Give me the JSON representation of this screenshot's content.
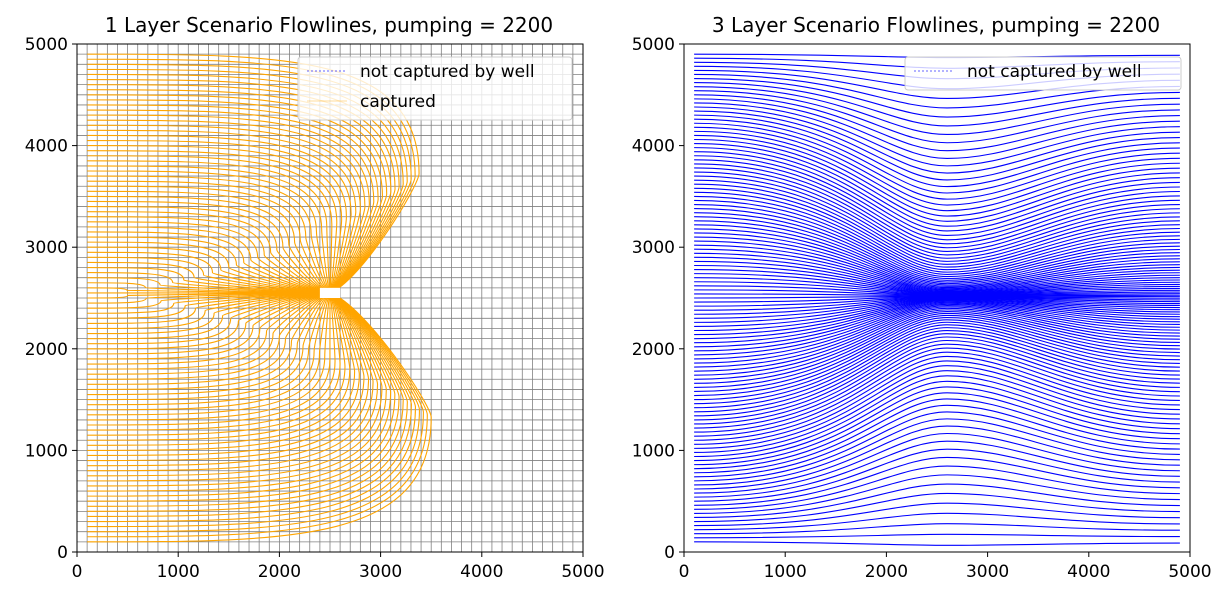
{
  "colors": {
    "captured": "#FFA500",
    "not_captured": "#0000FF",
    "grid": "#808080",
    "axis": "#000000",
    "background": "#FFFFFF"
  },
  "chart_data": [
    {
      "type": "line",
      "title": "1 Layer Scenario Flowlines, pumping = 2200",
      "xlim": [
        0,
        5000
      ],
      "ylim": [
        0,
        5000
      ],
      "x_ticks": [
        "0",
        "1000",
        "2000",
        "3000",
        "4000",
        "5000"
      ],
      "y_ticks": [
        "0",
        "1000",
        "2000",
        "3000",
        "4000",
        "5000"
      ],
      "model_grid": "on",
      "legend_location": "upper right",
      "legend": [
        "not captured by well",
        "captured"
      ],
      "series": [
        {
          "name": "not captured by well",
          "color": "#0000FF",
          "style": "dotted",
          "values": []
        },
        {
          "name": "captured",
          "color": "#FFA500",
          "style": "solid",
          "start_x": 100,
          "start_y_range": [
            100,
            4900
          ],
          "well": [
            2500,
            2550
          ],
          "max_x_lower_lobe": 3500,
          "max_x_upper_lobe": 3380
        }
      ]
    },
    {
      "type": "line",
      "title": "3 Layer Scenario Flowlines, pumping = 2200",
      "xlim": [
        0,
        5000
      ],
      "ylim": [
        0,
        5000
      ],
      "x_ticks": [
        "0",
        "1000",
        "2000",
        "3000",
        "4000",
        "5000"
      ],
      "y_ticks": [
        "0",
        "1000",
        "2000",
        "3000",
        "4000",
        "5000"
      ],
      "model_grid": "off",
      "legend_location": "upper right",
      "legend": [
        "not captured by well"
      ],
      "series": [
        {
          "name": "not captured by well",
          "color": "#0000FF",
          "style": "solid",
          "start_x": 100,
          "end_x": 4900,
          "start_y_range": [
            100,
            4900
          ],
          "convergence_y": 2520
        }
      ]
    }
  ]
}
